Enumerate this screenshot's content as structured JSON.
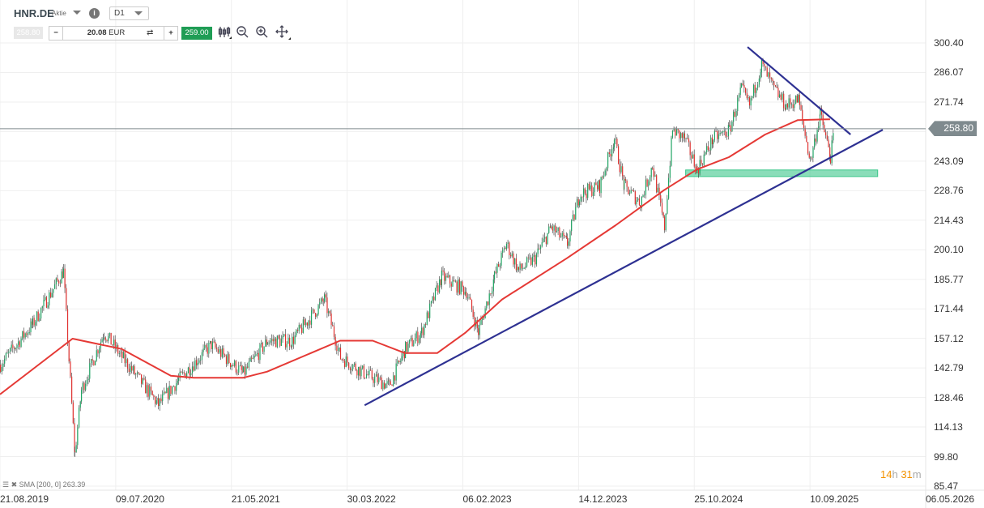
{
  "header": {
    "symbol": "HNR.DE",
    "symbol_type": "Aktie",
    "info_icon": "i",
    "timeframe": "D1",
    "bid": "258.80",
    "quantity_value": "20.08",
    "quantity_unit": "EUR",
    "minus": "−",
    "plus": "+",
    "swap_icon": "⇄",
    "ask": "259.00",
    "tools": [
      "candlestick-type-icon",
      "zoom-out-icon",
      "zoom-in-icon",
      "crosshair-move-icon"
    ]
  },
  "legend": {
    "text": "SMA [200, 0] 263.39"
  },
  "countdown": {
    "hours": "14",
    "h": "h",
    "minutes": "31",
    "m": "m"
  },
  "colors": {
    "up": "#1fa463",
    "down": "#e0312f",
    "sma": "#e53935",
    "trendline": "#2e3192",
    "zone": "#3cc68a",
    "price_line": "#7f8a8e"
  },
  "chart_data": {
    "type": "candlestick",
    "title": "",
    "current_price": "258.80",
    "y_ticks": [
      "300.40",
      "286.07",
      "271.74",
      "257.41",
      "243.09",
      "228.76",
      "214.43",
      "200.10",
      "185.77",
      "171.44",
      "157.12",
      "142.79",
      "128.46",
      "114.13",
      "99.80",
      "85.47"
    ],
    "ylim": [
      85.47,
      300.4
    ],
    "x_ticks": [
      "21.08.2019",
      "09.07.2020",
      "21.05.2021",
      "30.03.2022",
      "06.02.2023",
      "14.12.2023",
      "25.10.2024",
      "10.09.2025",
      "06.05.2026"
    ],
    "grid": true,
    "price_path": [
      [
        "2019-08-21",
        144.4
      ],
      [
        "2019-11-17",
        164
      ],
      [
        "2020-02-09",
        189.6
      ],
      [
        "2020-03-11",
        101
      ],
      [
        "2020-03-29",
        132
      ],
      [
        "2020-05-30",
        160
      ],
      [
        "2020-07-18",
        148
      ],
      [
        "2020-10-25",
        125
      ],
      [
        "2020-12-19",
        137
      ],
      [
        "2021-03-18",
        154
      ],
      [
        "2021-06-14",
        140
      ],
      [
        "2021-08-19",
        156
      ],
      [
        "2021-10-25",
        156
      ],
      [
        "2022-01-21",
        176
      ],
      [
        "2022-03-06",
        148
      ],
      [
        "2022-05-12",
        140
      ],
      [
        "2022-07-17",
        134
      ],
      [
        "2022-08-30",
        152
      ],
      [
        "2022-10-13",
        160
      ],
      [
        "2022-12-07",
        187
      ],
      [
        "2023-02-12",
        180
      ],
      [
        "2023-03-17",
        160
      ],
      [
        "2023-04-30",
        187
      ],
      [
        "2023-06-02",
        203
      ],
      [
        "2023-07-05",
        190
      ],
      [
        "2023-08-19",
        196
      ],
      [
        "2023-10-02",
        211
      ],
      [
        "2023-11-15",
        203
      ],
      [
        "2023-12-18",
        227
      ],
      [
        "2024-02-11",
        231
      ],
      [
        "2024-03-22",
        254
      ],
      [
        "2024-04-18",
        231
      ],
      [
        "2024-06-01",
        223
      ],
      [
        "2024-07-04",
        241
      ],
      [
        "2024-08-06",
        211
      ],
      [
        "2024-08-28",
        258
      ],
      [
        "2024-09-30",
        254
      ],
      [
        "2024-11-03",
        239
      ],
      [
        "2024-12-17",
        254
      ],
      [
        "2025-01-30",
        258
      ],
      [
        "2025-03-04",
        278
      ],
      [
        "2025-03-26",
        270
      ],
      [
        "2025-04-28",
        290
      ],
      [
        "2025-06-01",
        278
      ],
      [
        "2025-07-04",
        270
      ],
      [
        "2025-08-06",
        273
      ],
      [
        "2025-09-08",
        243
      ],
      [
        "2025-10-05",
        266
      ],
      [
        "2025-11-02",
        245
      ],
      [
        "2025-11-13",
        258.8
      ]
    ],
    "sma": {
      "name": "SMA [200, 0]",
      "last": 263.39,
      "points": [
        [
          "2019-08-21",
          130
        ],
        [
          "2020-03-06",
          157
        ],
        [
          "2020-07-18",
          152
        ],
        [
          "2020-11-29",
          139
        ],
        [
          "2021-01-31",
          138
        ],
        [
          "2021-06-14",
          138
        ],
        [
          "2021-08-19",
          141
        ],
        [
          "2022-03-06",
          156
        ],
        [
          "2022-06-03",
          156
        ],
        [
          "2022-08-30",
          150
        ],
        [
          "2022-11-26",
          150
        ],
        [
          "2023-02-12",
          160
        ],
        [
          "2023-05-22",
          176
        ],
        [
          "2023-11-15",
          196
        ],
        [
          "2024-03-27",
          212
        ],
        [
          "2024-08-06",
          229
        ],
        [
          "2024-11-03",
          239
        ],
        [
          "2025-01-30",
          245
        ],
        [
          "2025-05-09",
          256
        ],
        [
          "2025-08-06",
          263
        ],
        [
          "2025-11-02",
          263.39
        ]
      ]
    },
    "trendlines": [
      {
        "from": [
          "2022-05-12",
          124.7
        ],
        "to": [
          "2026-03-26",
          258.3
        ]
      },
      {
        "from": [
          "2025-03-22",
          298.4
        ],
        "to": [
          "2025-12-28",
          256.0
        ]
      }
    ],
    "support_zone": {
      "from": "2024-10-04",
      "to": "2026-03-12",
      "low": 235.6,
      "high": 238.8
    }
  }
}
